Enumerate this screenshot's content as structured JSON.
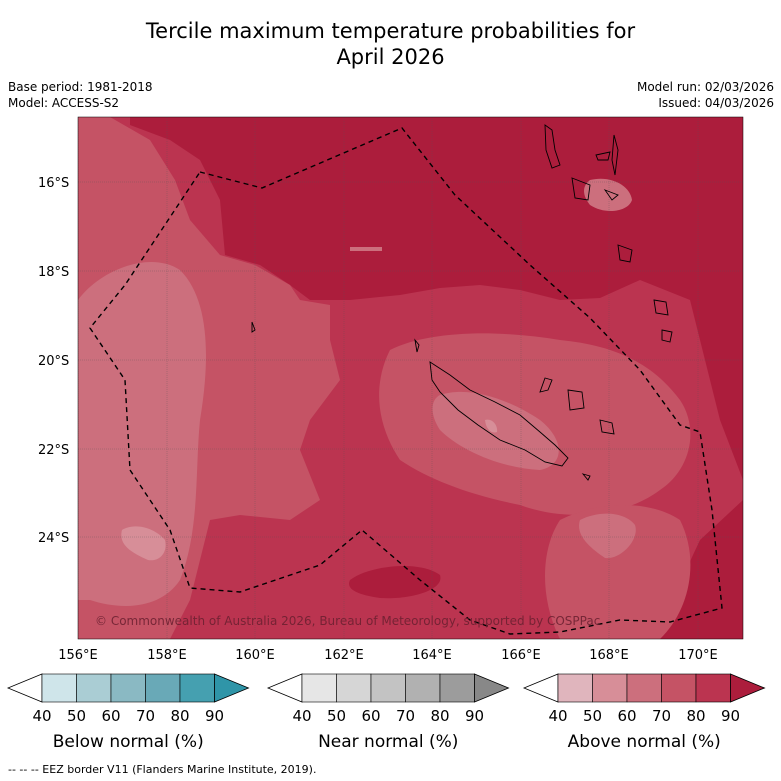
{
  "title_line1": "Tercile maximum temperature probabilities for",
  "title_line2": "April 2026",
  "base_period": "Base period: 1981-2018",
  "model": "Model: ACCESS-S2",
  "model_run": "Model run: 02/03/2026",
  "issued": "Issued: 04/03/2026",
  "copyright": "© Commonwealth of Australia 2026, Bureau of Meteorology, supported by COSPPac",
  "lat_labels": [
    "16°S",
    "18°S",
    "20°S",
    "22°S",
    "24°S"
  ],
  "lon_labels": [
    "156°E",
    "158°E",
    "160°E",
    "162°E",
    "164°E",
    "166°E",
    "168°E",
    "170°E"
  ],
  "colorbars": [
    {
      "title": "Below normal (%)",
      "ticks": [
        "40",
        "50",
        "60",
        "70",
        "80",
        "90"
      ],
      "colors": [
        "#cfe5ea",
        "#aacdd4",
        "#8ab9c3",
        "#69a9b7",
        "#45a0b0",
        "#2f95a8"
      ]
    },
    {
      "title": "Near normal (%)",
      "ticks": [
        "40",
        "50",
        "60",
        "70",
        "80",
        "90"
      ],
      "colors": [
        "#e6e6e6",
        "#d6d6d6",
        "#c3c3c3",
        "#b1b1b1",
        "#9c9c9c",
        "#888888"
      ]
    },
    {
      "title": "Above normal (%)",
      "ticks": [
        "40",
        "50",
        "60",
        "70",
        "80",
        "90"
      ],
      "colors": [
        "#e0b5bd",
        "#d78e98",
        "#cc6f7d",
        "#c55365",
        "#bb3450",
        "#ac1d3c"
      ]
    }
  ],
  "footer": "--  --  -- EEZ border V11 (Flanders Marine Institute, 2019).",
  "colors": {
    "c50": "#d78e98",
    "c60": "#cc6f7d",
    "c70": "#c55365",
    "c80": "#bb3450",
    "c90": "#ac1d3c"
  }
}
